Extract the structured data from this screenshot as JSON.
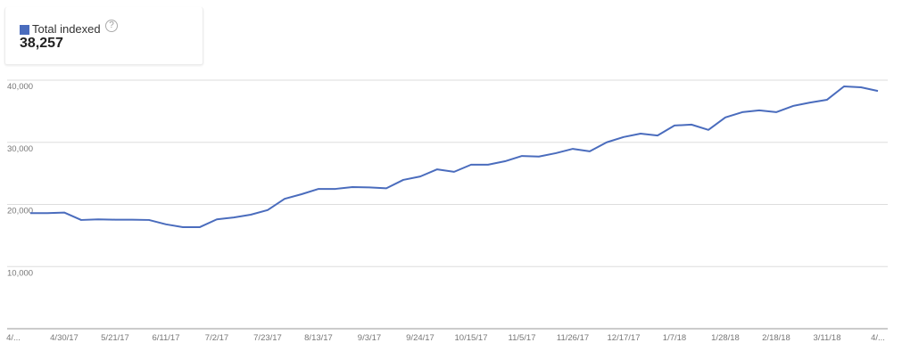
{
  "chart_data": {
    "type": "line",
    "summary": {
      "label": "Total indexed",
      "value": "38,257"
    },
    "categories": [
      "4/...",
      null,
      null,
      "4/30/17",
      null,
      null,
      "5/21/17",
      null,
      null,
      "6/11/17",
      null,
      null,
      "7/2/17",
      null,
      null,
      "7/23/17",
      null,
      null,
      "8/13/17",
      null,
      null,
      "9/3/17",
      null,
      null,
      "9/24/17",
      null,
      null,
      "10/15/17",
      null,
      null,
      "11/5/17",
      null,
      null,
      "11/26/17",
      null,
      null,
      "12/17/17",
      null,
      null,
      "1/7/18",
      null,
      null,
      "1/28/18",
      null,
      null,
      "2/18/18",
      null,
      null,
      "3/11/18",
      null,
      null,
      "4/..."
    ],
    "series": [
      {
        "name": "Total indexed",
        "color": "#4a6cbd",
        "values": [
          null,
          18600,
          18600,
          18700,
          17500,
          17600,
          17550,
          17550,
          17500,
          16800,
          16350,
          16350,
          17600,
          17900,
          18350,
          19100,
          20900,
          21650,
          22500,
          22500,
          22800,
          22750,
          22600,
          23950,
          24500,
          25650,
          25250,
          26400,
          26400,
          26950,
          27800,
          27700,
          28250,
          28950,
          28550,
          30000,
          30850,
          31400,
          31100,
          32700,
          32850,
          32000,
          34000,
          34850,
          35150,
          34850,
          35850,
          36400,
          36850,
          39000,
          38850,
          38257
        ]
      }
    ],
    "ylim": [
      0,
      40000
    ],
    "yticks": [
      {
        "value": 10000,
        "label": "10,000"
      },
      {
        "value": 20000,
        "label": "20,000"
      },
      {
        "value": 30000,
        "label": "30,000"
      },
      {
        "value": 40000,
        "label": "40,000"
      }
    ],
    "grid": true
  }
}
